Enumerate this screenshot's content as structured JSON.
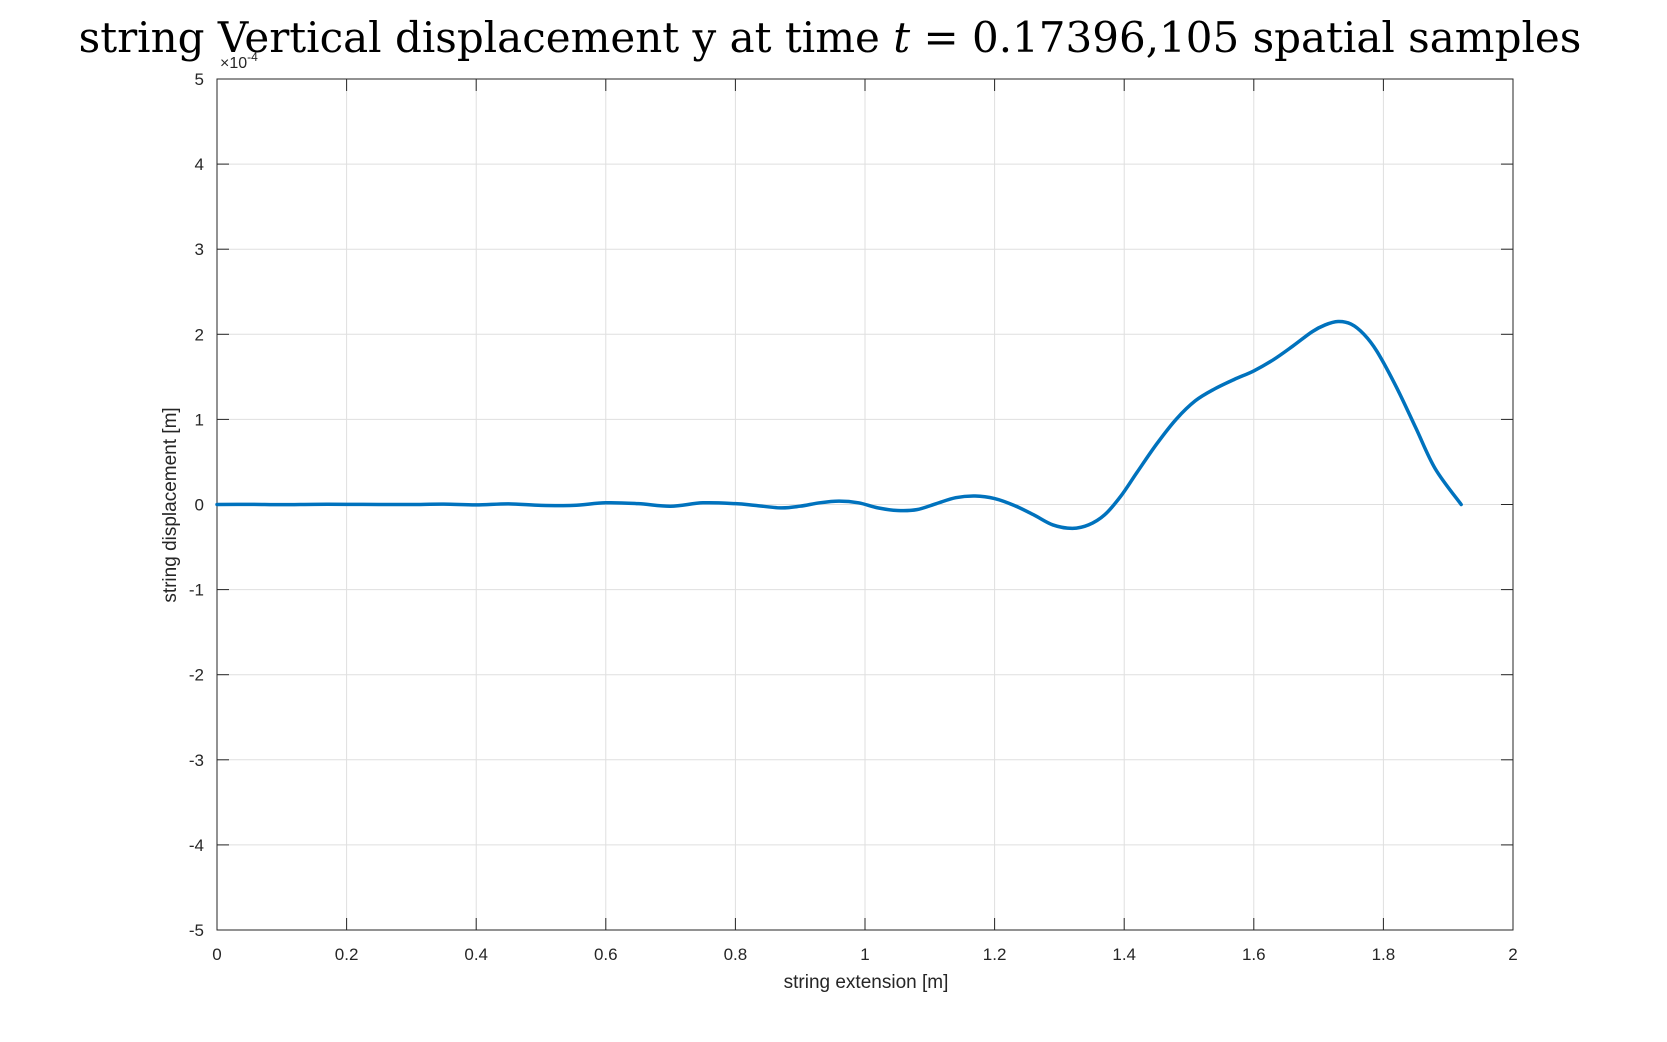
{
  "chart_data": {
    "type": "line",
    "title": "string Vertical displacement y at time t = 0.17396,105 spatial samples",
    "title_parts": {
      "prefix": "string Vertical displacement y at time ",
      "var": "t",
      "eq": " = 0.17396,105 spatial samples"
    },
    "xlabel": "string extension [m]",
    "ylabel": "string displacement [m]",
    "xlim": [
      0,
      2
    ],
    "ylim": [
      -5,
      5
    ],
    "y_exponent_label": "×10",
    "y_exponent_power": "-4",
    "grid": true,
    "x_ticks": [
      "0",
      "0.2",
      "0.4",
      "0.6",
      "0.8",
      "1",
      "1.2",
      "1.4",
      "1.6",
      "1.8",
      "2"
    ],
    "y_ticks": [
      "-5",
      "-4",
      "-3",
      "-2",
      "-1",
      "0",
      "1",
      "2",
      "3",
      "4",
      "5"
    ],
    "series": [
      {
        "name": "y",
        "color": "#0072BD",
        "x": [
          0,
          0.05,
          0.1,
          0.15,
          0.2,
          0.25,
          0.3,
          0.35,
          0.4,
          0.45,
          0.5,
          0.55,
          0.6,
          0.65,
          0.7,
          0.75,
          0.8,
          0.83,
          0.87,
          0.9,
          0.93,
          0.96,
          0.99,
          1.02,
          1.05,
          1.08,
          1.11,
          1.14,
          1.17,
          1.2,
          1.23,
          1.26,
          1.29,
          1.32,
          1.345,
          1.37,
          1.395,
          1.42,
          1.45,
          1.48,
          1.51,
          1.54,
          1.57,
          1.6,
          1.63,
          1.66,
          1.69,
          1.71,
          1.73,
          1.75,
          1.77,
          1.79,
          1.82,
          1.85,
          1.88,
          1.92
        ],
        "y": [
          0,
          0.002,
          -0.002,
          0.002,
          0.002,
          0,
          0,
          0.004,
          -0.005,
          0.008,
          -0.01,
          -0.01,
          0.02,
          0.01,
          -0.02,
          0.02,
          0.01,
          -0.01,
          -0.04,
          -0.02,
          0.02,
          0.04,
          0.02,
          -0.04,
          -0.07,
          -0.06,
          0.01,
          0.08,
          0.1,
          0.07,
          -0.01,
          -0.12,
          -0.24,
          -0.28,
          -0.24,
          -0.12,
          0.1,
          0.38,
          0.71,
          1.0,
          1.22,
          1.36,
          1.47,
          1.57,
          1.7,
          1.86,
          2.03,
          2.11,
          2.15,
          2.12,
          2.0,
          1.8,
          1.38,
          0.9,
          0.42,
          0
        ]
      }
    ]
  }
}
